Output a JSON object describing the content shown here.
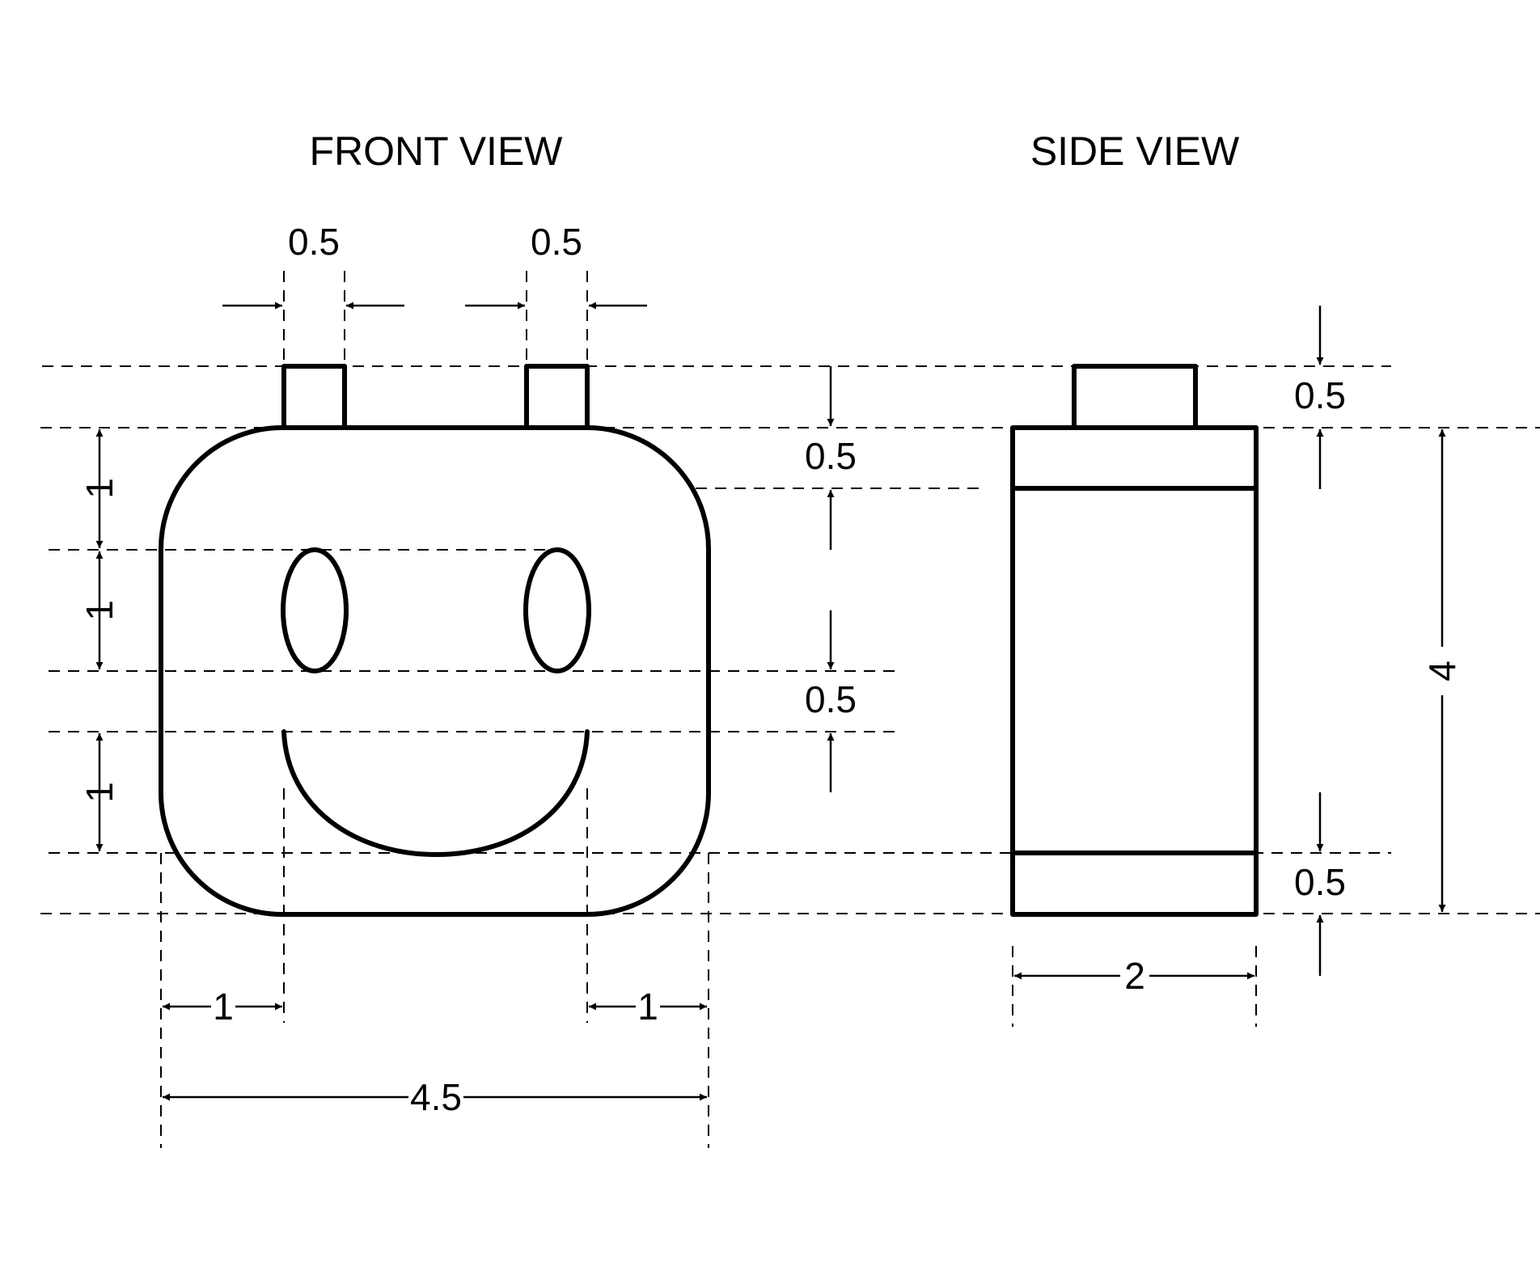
{
  "titles": {
    "front": "FRONT VIEW",
    "side": "SIDE VIEW"
  },
  "dimensions": {
    "front_tab_left_width": "0.5",
    "front_tab_right_width": "0.5",
    "front_tab_height": "0.5",
    "front_eye_top_offset": "1",
    "front_eye_height": "1",
    "front_eye_mouth_gap": "0.5",
    "front_mouth_height": "1",
    "front_left_corner": "1",
    "front_right_corner": "1",
    "front_total_width": "4.5",
    "side_tab_height": "0.5",
    "side_top_band": "0.5",
    "side_bottom_band": "0.5",
    "side_total_height": "4",
    "side_width": "2"
  },
  "colors": {
    "line": "#000000",
    "background": "#ffffff"
  }
}
